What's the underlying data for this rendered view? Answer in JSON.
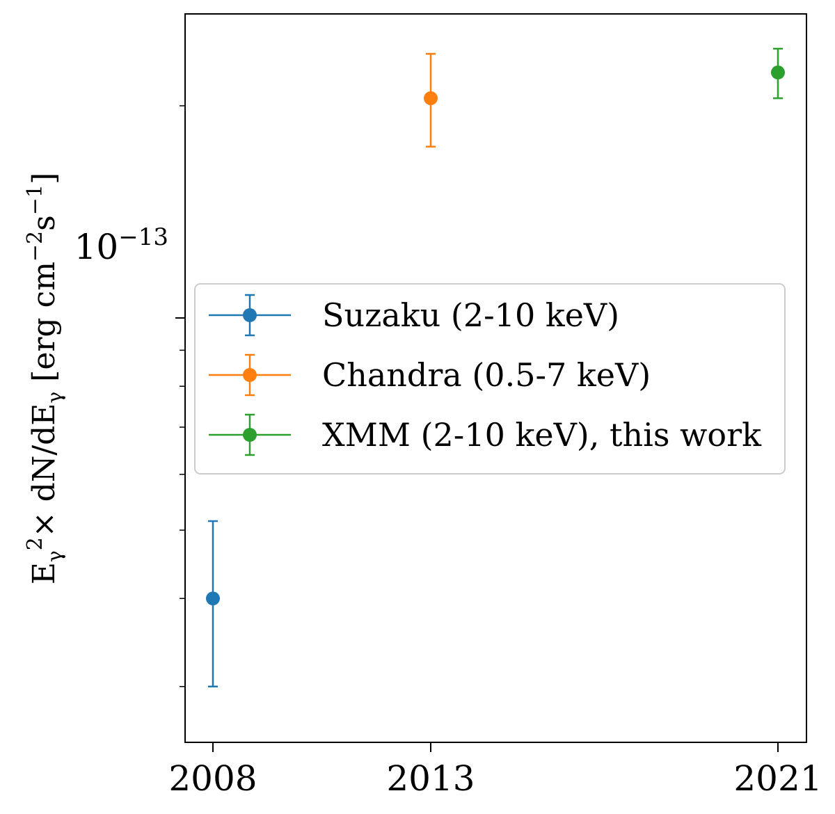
{
  "chart_data": {
    "type": "scatter",
    "yscale": "log",
    "xlabel": "",
    "ylabel": "E_γ² × dN/dE_γ [erg cm⁻²s⁻¹]",
    "ylabel_parts": {
      "lead": "E",
      "sub_gamma": "γ",
      "sup_two": "2",
      "times": "× dN/dE",
      "sub_gamma2": "γ",
      "unit_open": " [erg cm",
      "sup_minus_two": "−2",
      "unit_s": "s",
      "sup_minus_one": "−1",
      "unit_close": "]"
    },
    "ylim": [
      2.5e-14,
      2.7e-13
    ],
    "y_major_tick": {
      "value": 1e-13,
      "base": "10",
      "exponent": "−13"
    },
    "y_minor_ticks": [
      3e-14,
      4e-14,
      5e-14,
      6e-14,
      7e-14,
      8e-14,
      9e-14,
      2e-13
    ],
    "x_ticks": [
      {
        "label": "2008",
        "pos": 0
      },
      {
        "label": "2013",
        "pos": 1
      },
      {
        "label": "2021",
        "pos": 2
      }
    ],
    "legend_position": "center",
    "series": [
      {
        "name": "Suzaku (2-10 keV)",
        "color": "#1f77b4",
        "x_pos": 0,
        "year": "2008",
        "y": 4e-14,
        "yerr_low": 3e-14,
        "yerr_high": 5.15e-14
      },
      {
        "name": "Chandra (0.5-7 keV)",
        "color": "#ff7f0e",
        "x_pos": 1,
        "year": "2013",
        "y": 2.05e-13,
        "yerr_low": 1.75e-13,
        "yerr_high": 2.37e-13
      },
      {
        "name": "XMM (2-10 keV), this work",
        "color": "#2ca02c",
        "x_pos": 2,
        "year": "2021",
        "y": 2.23e-13,
        "yerr_low": 2.05e-13,
        "yerr_high": 2.41e-13
      }
    ]
  }
}
